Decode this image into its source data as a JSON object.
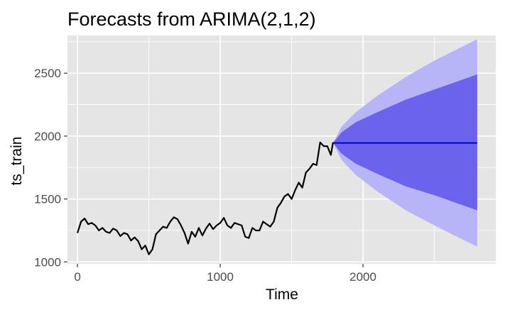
{
  "chart_data": {
    "type": "line",
    "title": "Forecasts from ARIMA(2,1,2)",
    "xlabel": "Time",
    "ylabel": "ts_train",
    "xlim": [
      -70,
      2930
    ],
    "ylim": [
      985,
      2800
    ],
    "xticks": [
      0,
      1000,
      2000
    ],
    "yticks": [
      1000,
      1500,
      2000,
      2500
    ],
    "grid": true,
    "colors": {
      "panel": "#e5e5e5",
      "grid": "#ffffff",
      "history_line": "#000000",
      "forecast_line": "#0000cd",
      "band_80": "#6b63ee",
      "band_95": "#b7b5f7"
    },
    "series": [
      {
        "role": "history",
        "x": [
          0,
          25,
          50,
          75,
          100,
          125,
          150,
          175,
          200,
          225,
          250,
          275,
          300,
          325,
          350,
          375,
          400,
          425,
          450,
          475,
          500,
          525,
          550,
          575,
          600,
          625,
          650,
          675,
          700,
          725,
          750,
          775,
          800,
          825,
          850,
          875,
          900,
          925,
          950,
          975,
          1000,
          1025,
          1050,
          1075,
          1100,
          1125,
          1150,
          1175,
          1200,
          1225,
          1250,
          1275,
          1300,
          1325,
          1350,
          1375,
          1400,
          1425,
          1450,
          1475,
          1500,
          1525,
          1550,
          1575,
          1600,
          1625,
          1650,
          1675,
          1700,
          1725,
          1750,
          1775,
          1790
        ],
        "values": [
          1230,
          1320,
          1345,
          1300,
          1310,
          1290,
          1250,
          1270,
          1240,
          1230,
          1265,
          1250,
          1205,
          1230,
          1220,
          1170,
          1195,
          1165,
          1100,
          1130,
          1060,
          1100,
          1220,
          1250,
          1280,
          1270,
          1320,
          1355,
          1340,
          1290,
          1230,
          1145,
          1240,
          1200,
          1270,
          1210,
          1265,
          1305,
          1260,
          1290,
          1310,
          1350,
          1290,
          1270,
          1310,
          1300,
          1290,
          1200,
          1190,
          1270,
          1250,
          1250,
          1320,
          1300,
          1280,
          1320,
          1430,
          1470,
          1520,
          1540,
          1500,
          1570,
          1630,
          1590,
          1710,
          1740,
          1780,
          1770,
          1950,
          1920,
          1920,
          1850,
          1950
        ]
      },
      {
        "role": "forecast_mean",
        "x": [
          1790,
          2800
        ],
        "values": [
          1945,
          1945
        ]
      }
    ],
    "intervals": [
      {
        "level": "95",
        "x": [
          1790,
          1850,
          1950,
          2100,
          2300,
          2500,
          2800
        ],
        "lower": [
          1945,
          1810,
          1690,
          1560,
          1410,
          1290,
          1120
        ],
        "upper": [
          1945,
          2075,
          2190,
          2320,
          2470,
          2600,
          2770
        ]
      },
      {
        "level": "80",
        "x": [
          1790,
          1850,
          1950,
          2100,
          2300,
          2500,
          2800
        ],
        "lower": [
          1945,
          1860,
          1780,
          1700,
          1600,
          1530,
          1410
        ],
        "upper": [
          1945,
          2030,
          2110,
          2190,
          2290,
          2370,
          2490
        ]
      }
    ]
  }
}
